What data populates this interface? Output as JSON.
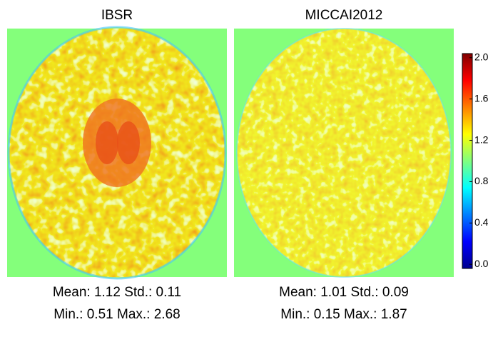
{
  "panels": [
    {
      "title": "IBSR",
      "caption": [
        "Mean: 1.12 Std.: 0.11",
        "Min.: 0.51 Max.: 2.68"
      ]
    },
    {
      "title": "MICCAI2012",
      "caption": [
        "Mean: 1.01 Std.: 0.09",
        "Min.: 0.15 Max.: 1.87"
      ]
    }
  ],
  "colorbar": {
    "lim": [
      -0.04,
      2.04
    ],
    "ticks": [
      {
        "value": 0,
        "label": "0.0"
      },
      {
        "value": 0.4,
        "label": "0.4"
      },
      {
        "value": 0.8,
        "label": "0.8"
      },
      {
        "value": 1.2,
        "label": "1.2"
      },
      {
        "value": 1.6,
        "label": "1.6"
      },
      {
        "value": 2,
        "label": "2.0"
      }
    ]
  }
}
